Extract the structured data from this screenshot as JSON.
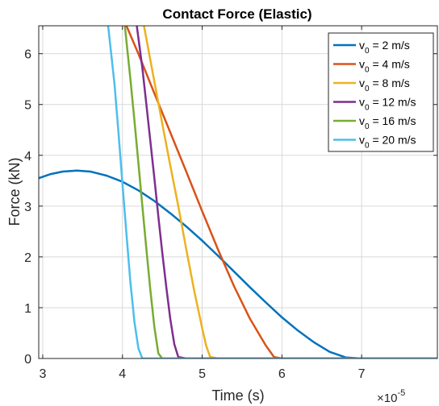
{
  "chart_data": {
    "type": "line",
    "title": "Contact Force (Elastic)",
    "xlabel": "Time (s)",
    "ylabel": "Force (kN)",
    "x_exponent_label": "×10",
    "x_exponent_power": "-5",
    "xlim": [
      2.95,
      7.95
    ],
    "ylim": [
      0,
      6.55
    ],
    "x_ticks": [
      3,
      4,
      5,
      6,
      7
    ],
    "y_ticks": [
      0,
      1,
      2,
      3,
      4,
      5,
      6
    ],
    "x_tick_labels": [
      "3",
      "4",
      "5",
      "6",
      "7"
    ],
    "y_tick_labels": [
      "0",
      "1",
      "2",
      "3",
      "4",
      "5",
      "6"
    ],
    "grid": true,
    "legend_position": "top-right",
    "series": [
      {
        "name_base": "v",
        "name_sub": "0",
        "name_rest": " = 2 m/s",
        "color": "#0072BD",
        "x": [
          2.95,
          3.1,
          3.25,
          3.43,
          3.6,
          3.8,
          4.0,
          4.2,
          4.4,
          4.6,
          4.8,
          5.0,
          5.2,
          5.4,
          5.6,
          5.8,
          6.0,
          6.2,
          6.4,
          6.6,
          6.8,
          7.0,
          7.5,
          7.95
        ],
        "y": [
          3.55,
          3.63,
          3.68,
          3.7,
          3.68,
          3.6,
          3.48,
          3.31,
          3.1,
          2.86,
          2.6,
          2.32,
          2.02,
          1.71,
          1.4,
          1.1,
          0.81,
          0.55,
          0.32,
          0.13,
          0.02,
          0.0,
          0.0,
          0.0
        ]
      },
      {
        "name_base": "v",
        "name_sub": "0",
        "name_rest": " = 4 m/s",
        "color": "#D95319",
        "x": [
          4.05,
          4.2,
          4.4,
          4.6,
          4.8,
          5.0,
          5.2,
          5.4,
          5.6,
          5.8,
          5.9,
          6.0,
          6.5,
          7.0,
          7.95
        ],
        "y": [
          6.55,
          6.0,
          5.22,
          4.45,
          3.68,
          2.9,
          2.14,
          1.42,
          0.78,
          0.25,
          0.03,
          0.0,
          0.0,
          0.0,
          0.0
        ]
      },
      {
        "name_base": "v",
        "name_sub": "0",
        "name_rest": " = 8 m/s",
        "color": "#EDB120",
        "x": [
          4.27,
          4.4,
          4.5,
          4.6,
          4.7,
          4.8,
          4.9,
          5.0,
          5.05,
          5.1,
          5.2,
          5.5,
          7.95
        ],
        "y": [
          6.55,
          5.45,
          4.62,
          3.8,
          3.0,
          2.15,
          1.33,
          0.6,
          0.25,
          0.03,
          0.0,
          0.0,
          0.0
        ]
      },
      {
        "name_base": "v",
        "name_sub": "0",
        "name_rest": " = 12 m/s",
        "color": "#7E2F8E",
        "x": [
          4.18,
          4.25,
          4.3,
          4.35,
          4.4,
          4.45,
          4.5,
          4.55,
          4.6,
          4.65,
          4.7,
          4.8,
          5.0,
          7.95
        ],
        "y": [
          6.55,
          5.72,
          5.0,
          4.28,
          3.55,
          2.8,
          2.08,
          1.4,
          0.78,
          0.28,
          0.03,
          0.0,
          0.0,
          0.0
        ]
      },
      {
        "name_base": "v",
        "name_sub": "0",
        "name_rest": " = 16 m/s",
        "color": "#77AC30",
        "x": [
          4.03,
          4.1,
          4.15,
          4.2,
          4.25,
          4.3,
          4.35,
          4.4,
          4.45,
          4.5,
          4.6,
          7.95
        ],
        "y": [
          6.55,
          5.5,
          4.68,
          3.85,
          3.0,
          2.15,
          1.35,
          0.62,
          0.1,
          0.0,
          0.0,
          0.0
        ]
      },
      {
        "name_base": "v",
        "name_sub": "0",
        "name_rest": " = 20 m/s",
        "color": "#4DBEEE",
        "x": [
          3.82,
          3.9,
          3.95,
          4.0,
          4.05,
          4.1,
          4.15,
          4.2,
          4.25,
          4.3,
          4.5,
          7.95
        ],
        "y": [
          6.55,
          5.4,
          4.45,
          3.45,
          2.45,
          1.5,
          0.72,
          0.2,
          0.0,
          0.0,
          0.0,
          0.0
        ]
      }
    ]
  }
}
